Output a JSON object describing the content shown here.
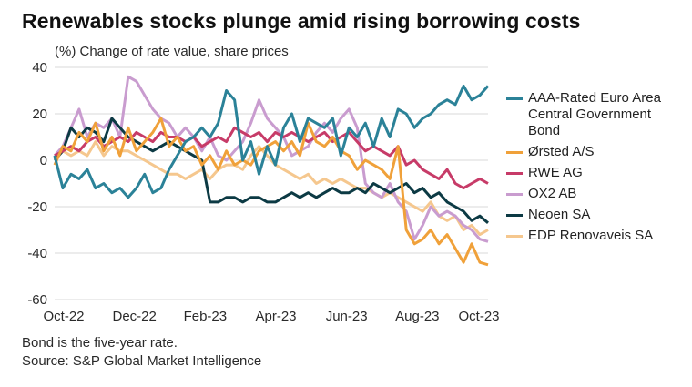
{
  "title": "Renewables stocks plunge amid rising borrowing costs",
  "subtitle": "(%) Change of rate value, share prices",
  "footer": {
    "note": "Bond is the five-year rate.",
    "source": "Source: S&P Global Market Intelligence"
  },
  "chart_data": {
    "type": "line",
    "title": "Renewables stocks plunge amid rising borrowing costs",
    "ylabel": "(%) Change of rate value, share prices",
    "xlabel": "",
    "ylim": [
      -60,
      40
    ],
    "yticks": [
      40,
      20,
      0,
      -20,
      -40,
      -60
    ],
    "x_range": [
      "Oct-22",
      "Oct-23"
    ],
    "xticks": [
      "Oct-22",
      "Dec-22",
      "Feb-23",
      "Apr-23",
      "Jun-23",
      "Aug-23",
      "Oct-23"
    ],
    "grid": "horizontal",
    "legend_position": "right",
    "x_points": 54,
    "series": [
      {
        "name": "AAA-Rated Euro Area Central Government Bond",
        "color": "#2b8298",
        "values": [
          2,
          -12,
          -6,
          -8,
          -4,
          -12,
          -10,
          -14,
          -12,
          -16,
          -12,
          -6,
          -14,
          -12,
          -4,
          2,
          8,
          10,
          14,
          10,
          16,
          30,
          26,
          0,
          8,
          -6,
          6,
          -2,
          14,
          20,
          8,
          18,
          16,
          14,
          18,
          2,
          14,
          10,
          16,
          6,
          18,
          10,
          22,
          20,
          14,
          18,
          20,
          24,
          26,
          24,
          32,
          26,
          28,
          32
        ]
      },
      {
        "name": "Ørsted A/S",
        "color": "#f0a13a",
        "values": [
          -2,
          6,
          4,
          12,
          8,
          16,
          4,
          10,
          2,
          14,
          4,
          8,
          12,
          18,
          6,
          10,
          4,
          6,
          -2,
          2,
          -4,
          4,
          -2,
          0,
          -2,
          4,
          6,
          8,
          4,
          8,
          2,
          16,
          8,
          6,
          10,
          4,
          2,
          -4,
          0,
          -2,
          -4,
          -8,
          6,
          -30,
          -36,
          -34,
          -30,
          -36,
          -32,
          -38,
          -44,
          -36,
          -44,
          -45
        ]
      },
      {
        "name": "RWE AG",
        "color": "#c73b68",
        "values": [
          2,
          4,
          6,
          4,
          8,
          10,
          6,
          8,
          10,
          8,
          12,
          10,
          8,
          12,
          10,
          10,
          8,
          10,
          6,
          8,
          10,
          8,
          14,
          12,
          10,
          12,
          8,
          12,
          10,
          12,
          10,
          8,
          10,
          12,
          8,
          10,
          12,
          8,
          4,
          6,
          4,
          2,
          6,
          -2,
          0,
          -4,
          -6,
          -8,
          -4,
          -10,
          -12,
          -10,
          -8,
          -10
        ]
      },
      {
        "name": "OX2 AB",
        "color": "#c99ccf",
        "values": [
          2,
          6,
          14,
          22,
          10,
          16,
          14,
          18,
          10,
          36,
          34,
          28,
          22,
          18,
          16,
          10,
          14,
          10,
          4,
          10,
          2,
          0,
          4,
          8,
          16,
          26,
          18,
          14,
          10,
          2,
          4,
          6,
          12,
          16,
          12,
          18,
          22,
          14,
          -10,
          -14,
          -16,
          -10,
          -18,
          -22,
          -34,
          -28,
          -20,
          -24,
          -22,
          -24,
          -28,
          -30,
          -34,
          -35
        ]
      },
      {
        "name": "Neoen SA",
        "color": "#0c3a44",
        "values": [
          0,
          4,
          14,
          10,
          14,
          12,
          8,
          18,
          14,
          10,
          8,
          6,
          4,
          6,
          8,
          6,
          4,
          2,
          0,
          -18,
          -18,
          -16,
          -16,
          -18,
          -16,
          -16,
          -18,
          -18,
          -16,
          -14,
          -16,
          -14,
          -16,
          -14,
          -12,
          -14,
          -14,
          -12,
          -14,
          -10,
          -12,
          -14,
          -12,
          -10,
          -14,
          -12,
          -16,
          -14,
          -18,
          -20,
          -22,
          -26,
          -24,
          -27
        ]
      },
      {
        "name": "EDP Renovaveis SA",
        "color": "#f5c78e",
        "values": [
          0,
          4,
          2,
          4,
          2,
          8,
          2,
          6,
          4,
          4,
          2,
          0,
          -2,
          -4,
          -6,
          -6,
          -8,
          -6,
          -4,
          -8,
          -4,
          -2,
          -2,
          -4,
          2,
          6,
          2,
          -2,
          -4,
          -6,
          -8,
          -6,
          -10,
          -8,
          -10,
          -8,
          -10,
          -12,
          -12,
          -14,
          -16,
          -14,
          -16,
          -18,
          -20,
          -22,
          -18,
          -24,
          -26,
          -24,
          -30,
          -28,
          -32,
          -30
        ]
      }
    ]
  }
}
